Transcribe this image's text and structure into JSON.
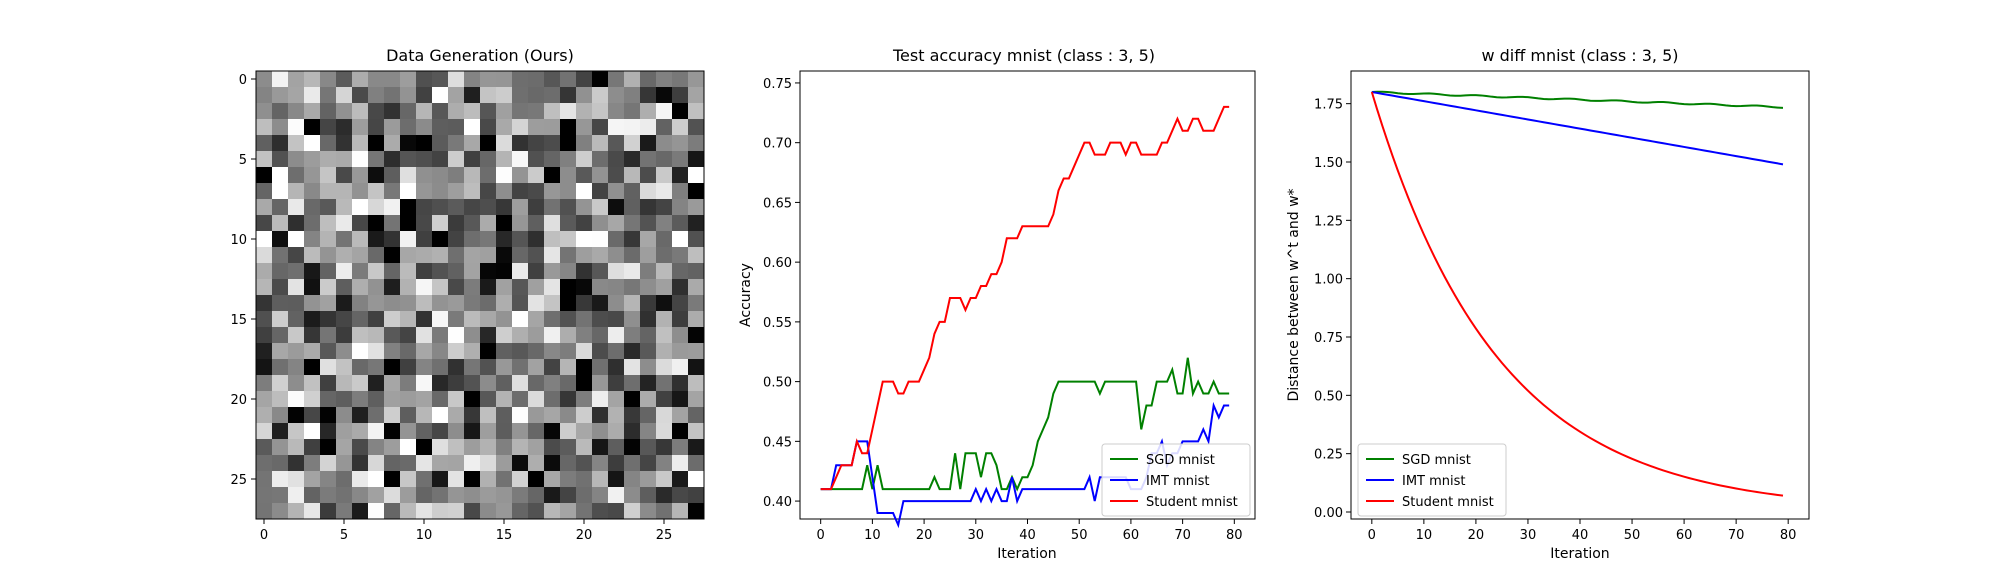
{
  "panels": {
    "heatmap": {
      "title": "Data Generation (Ours)",
      "xticks": [
        "0",
        "5",
        "10",
        "15",
        "20",
        "25"
      ],
      "yticks": [
        "0",
        "5",
        "10",
        "15",
        "20",
        "25"
      ]
    },
    "acc": {
      "title": "Test accuracy mnist (class : 3, 5)",
      "xlabel": "Iteration",
      "ylabel": "Accuracy",
      "xticks": [
        "0",
        "10",
        "20",
        "30",
        "40",
        "50",
        "60",
        "70",
        "80"
      ],
      "yticks": [
        "0.40",
        "0.45",
        "0.50",
        "0.55",
        "0.60",
        "0.65",
        "0.70",
        "0.75"
      ],
      "legend": [
        "SGD mnist",
        "IMT mnist",
        "Student mnist"
      ]
    },
    "diff": {
      "title": "w diff mnist (class : 3, 5)",
      "xlabel": "Iteration",
      "ylabel": "Distance between w^t and w*",
      "xticks": [
        "0",
        "10",
        "20",
        "30",
        "40",
        "50",
        "60",
        "70",
        "80"
      ],
      "yticks": [
        "0.00",
        "0.25",
        "0.50",
        "0.75",
        "1.00",
        "1.25",
        "1.50",
        "1.75"
      ],
      "legend": [
        "SGD mnist",
        "IMT mnist",
        "Student mnist"
      ]
    }
  },
  "colors": {
    "sgd": "#008000",
    "imt": "#0000ff",
    "student": "#ff0000"
  },
  "chart_data": [
    {
      "type": "heatmap",
      "title": "Data Generation (Ours)",
      "rows": 28,
      "cols": 28,
      "colormap": "gray",
      "note_values": "random grayscale pixels 0-1",
      "xlim": [
        -0.5,
        27.5
      ],
      "ylim": [
        27.5,
        -0.5
      ],
      "seed": 12345
    },
    {
      "type": "line",
      "title": "Test accuracy mnist (class : 3, 5)",
      "xlabel": "Iteration",
      "ylabel": "Accuracy",
      "xlim": [
        -4,
        84
      ],
      "ylim": [
        0.385,
        0.76
      ],
      "series": [
        {
          "name": "SGD mnist",
          "key": "sgd",
          "values": [
            0.41,
            0.41,
            0.41,
            0.41,
            0.41,
            0.41,
            0.41,
            0.41,
            0.41,
            0.43,
            0.41,
            0.43,
            0.41,
            0.41,
            0.41,
            0.41,
            0.41,
            0.41,
            0.41,
            0.41,
            0.41,
            0.41,
            0.42,
            0.41,
            0.41,
            0.41,
            0.44,
            0.41,
            0.44,
            0.44,
            0.44,
            0.42,
            0.44,
            0.44,
            0.43,
            0.41,
            0.41,
            0.42,
            0.41,
            0.42,
            0.42,
            0.43,
            0.45,
            0.46,
            0.47,
            0.49,
            0.5,
            0.5,
            0.5,
            0.5,
            0.5,
            0.5,
            0.5,
            0.5,
            0.49,
            0.5,
            0.5,
            0.5,
            0.5,
            0.5,
            0.5,
            0.5,
            0.46,
            0.48,
            0.48,
            0.5,
            0.5,
            0.5,
            0.51,
            0.49,
            0.49,
            0.52,
            0.49,
            0.5,
            0.49,
            0.49,
            0.5,
            0.49,
            0.49,
            0.49
          ]
        },
        {
          "name": "IMT mnist",
          "key": "imt",
          "values": [
            0.41,
            0.41,
            0.41,
            0.43,
            0.43,
            0.43,
            0.43,
            0.45,
            0.45,
            0.45,
            0.42,
            0.39,
            0.39,
            0.39,
            0.39,
            0.38,
            0.4,
            0.4,
            0.4,
            0.4,
            0.4,
            0.4,
            0.4,
            0.4,
            0.4,
            0.4,
            0.4,
            0.4,
            0.4,
            0.4,
            0.41,
            0.4,
            0.41,
            0.4,
            0.41,
            0.4,
            0.4,
            0.42,
            0.4,
            0.41,
            0.41,
            0.41,
            0.41,
            0.41,
            0.41,
            0.41,
            0.41,
            0.41,
            0.41,
            0.41,
            0.41,
            0.41,
            0.42,
            0.4,
            0.42,
            0.42,
            0.42,
            0.42,
            0.42,
            0.42,
            0.41,
            0.41,
            0.41,
            0.42,
            0.44,
            0.44,
            0.45,
            0.43,
            0.44,
            0.44,
            0.45,
            0.45,
            0.45,
            0.45,
            0.46,
            0.45,
            0.48,
            0.47,
            0.48,
            0.48
          ]
        },
        {
          "name": "Student mnist",
          "key": "student",
          "values": [
            0.41,
            0.41,
            0.41,
            0.42,
            0.43,
            0.43,
            0.43,
            0.45,
            0.44,
            0.44,
            0.46,
            0.48,
            0.5,
            0.5,
            0.5,
            0.49,
            0.49,
            0.5,
            0.5,
            0.5,
            0.51,
            0.52,
            0.54,
            0.55,
            0.55,
            0.57,
            0.57,
            0.57,
            0.56,
            0.57,
            0.57,
            0.58,
            0.58,
            0.59,
            0.59,
            0.6,
            0.62,
            0.62,
            0.62,
            0.63,
            0.63,
            0.63,
            0.63,
            0.63,
            0.63,
            0.64,
            0.66,
            0.67,
            0.67,
            0.68,
            0.69,
            0.7,
            0.7,
            0.69,
            0.69,
            0.69,
            0.7,
            0.7,
            0.7,
            0.69,
            0.7,
            0.7,
            0.69,
            0.69,
            0.69,
            0.69,
            0.7,
            0.7,
            0.71,
            0.72,
            0.71,
            0.71,
            0.72,
            0.72,
            0.71,
            0.71,
            0.71,
            0.72,
            0.73,
            0.73
          ]
        }
      ],
      "x": "0..79"
    },
    {
      "type": "line",
      "title": "w diff mnist (class : 3, 5)",
      "xlabel": "Iteration",
      "ylabel": "Distance between w^t and w*",
      "xlim": [
        -4,
        84
      ],
      "ylim": [
        -0.03,
        1.89
      ],
      "series": [
        {
          "name": "SGD mnist",
          "key": "sgd",
          "start": 1.8,
          "end": 1.735,
          "shape": "linear"
        },
        {
          "name": "IMT mnist",
          "key": "imt",
          "start": 1.8,
          "end": 1.49,
          "shape": "linear"
        },
        {
          "name": "Student mnist",
          "key": "student",
          "start": 1.8,
          "end": 0.07,
          "shape": "exp",
          "rate": 0.0415
        }
      ],
      "x": "0..79"
    }
  ]
}
